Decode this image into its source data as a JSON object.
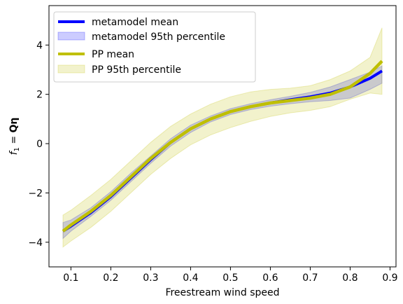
{
  "chart_data": {
    "type": "line",
    "xlabel": "Freestream wind speed",
    "ylabel_prefix": "f",
    "ylabel_sub": "1",
    "ylabel_eq": " = ",
    "ylabel_bold": "Qη",
    "xlim": [
      0.045,
      0.915
    ],
    "ylim": [
      -5,
      5.6
    ],
    "xticks": [
      0.1,
      0.2,
      0.3,
      0.4,
      0.5,
      0.6,
      0.7,
      0.8,
      0.9
    ],
    "xtick_labels": [
      "0.1",
      "0.2",
      "0.3",
      "0.4",
      "0.5",
      "0.6",
      "0.7",
      "0.8",
      "0.9"
    ],
    "yticks": [
      -4,
      -2,
      0,
      2,
      4
    ],
    "ytick_labels": [
      "−4",
      "−2",
      "0",
      "2",
      "4"
    ],
    "grid": false,
    "legend_position": "top-left",
    "colors": {
      "metamodel_mean": "#0000ff",
      "metamodel_band": "#0000ff",
      "pp_mean": "#bfbf00",
      "pp_band": "#bfbf00"
    },
    "x": [
      0.08,
      0.1,
      0.15,
      0.2,
      0.25,
      0.3,
      0.35,
      0.4,
      0.45,
      0.5,
      0.55,
      0.6,
      0.65,
      0.7,
      0.75,
      0.8,
      0.85,
      0.88
    ],
    "series": [
      {
        "name": "metamodel mean",
        "kind": "line",
        "values": [
          -3.55,
          -3.35,
          -2.8,
          -2.15,
          -1.4,
          -0.65,
          0.05,
          0.6,
          1.0,
          1.3,
          1.5,
          1.65,
          1.78,
          1.9,
          2.05,
          2.3,
          2.65,
          2.95
        ]
      },
      {
        "name": "metamodel 95th percentile",
        "kind": "band",
        "lower": [
          -3.85,
          -3.55,
          -2.95,
          -2.3,
          -1.55,
          -0.8,
          -0.1,
          0.45,
          0.88,
          1.18,
          1.38,
          1.52,
          1.62,
          1.7,
          1.75,
          1.85,
          2.2,
          2.45
        ],
        "upper": [
          -3.2,
          -3.1,
          -2.6,
          -1.95,
          -1.2,
          -0.5,
          0.2,
          0.75,
          1.12,
          1.42,
          1.62,
          1.78,
          1.92,
          2.08,
          2.3,
          2.6,
          2.9,
          3.15
        ]
      },
      {
        "name": "PP mean",
        "kind": "line",
        "values": [
          -3.55,
          -3.3,
          -2.75,
          -2.1,
          -1.35,
          -0.6,
          0.05,
          0.6,
          1.0,
          1.3,
          1.5,
          1.65,
          1.75,
          1.85,
          2.0,
          2.3,
          2.85,
          3.35
        ]
      },
      {
        "name": "PP 95th percentile",
        "kind": "band",
        "lower": [
          -4.2,
          -3.95,
          -3.4,
          -2.75,
          -2.0,
          -1.25,
          -0.6,
          -0.05,
          0.35,
          0.65,
          0.9,
          1.1,
          1.25,
          1.35,
          1.5,
          1.8,
          2.05,
          2.0
        ],
        "upper": [
          -2.9,
          -2.7,
          -2.1,
          -1.45,
          -0.7,
          0.05,
          0.7,
          1.2,
          1.6,
          1.9,
          2.1,
          2.2,
          2.25,
          2.35,
          2.6,
          2.95,
          3.5,
          4.7
        ]
      }
    ]
  }
}
